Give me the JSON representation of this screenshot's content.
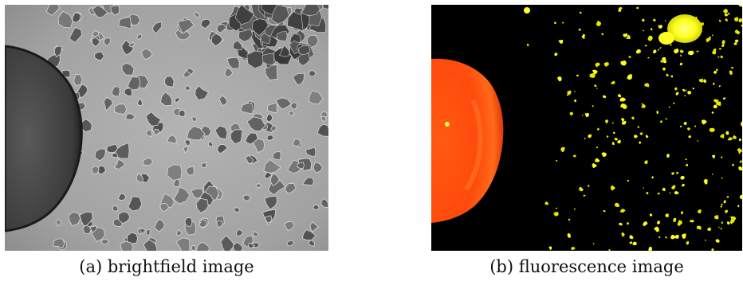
{
  "panels": [
    {
      "caption": "(a) brightfield image",
      "image_semantic": "brightfield-microscopy-image",
      "colors": {
        "background": "#a9a9a9",
        "spheroid": "#3d3d3d",
        "cells": "#6b6b6b"
      }
    },
    {
      "caption": "(b) fluorescence image",
      "image_semantic": "fluorescence-microscopy-image",
      "colors": {
        "background": "#000000",
        "spheroid": "#ff4a10",
        "cells": "#ffff1a"
      }
    }
  ]
}
